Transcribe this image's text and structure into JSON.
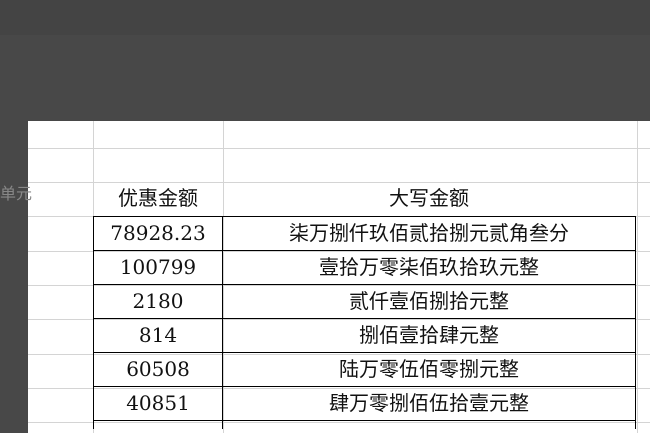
{
  "side_label": "单元",
  "table": {
    "headers": [
      "优惠金额",
      "大写金额"
    ],
    "rows": [
      [
        "78928.23",
        "柒万捌仟玖佰贰拾捌元贰角叁分"
      ],
      [
        "100799",
        "壹拾万零柒佰玖拾玖元整"
      ],
      [
        "2180",
        "贰仟壹佰捌拾元整"
      ],
      [
        "814",
        "捌佰壹拾肆元整"
      ],
      [
        "60508",
        "陆万零伍佰零捌元整"
      ],
      [
        "40851",
        "肆万零捌佰伍拾壹元整"
      ]
    ]
  }
}
